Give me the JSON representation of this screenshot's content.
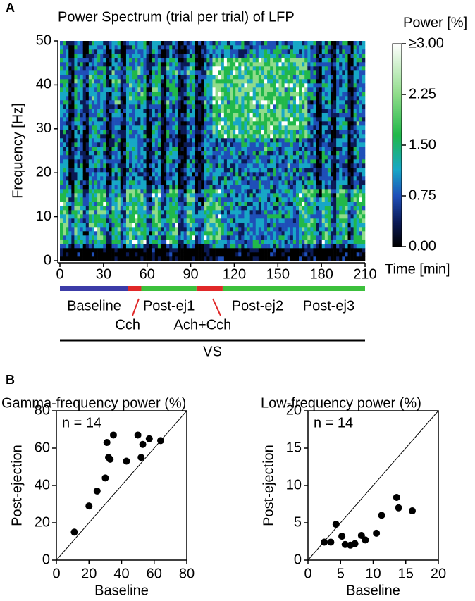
{
  "chart_data": [
    {
      "type": "spectrogram",
      "panel_label": "A",
      "title": "Power Spectrum (trial per trial) of LFP",
      "xlabel": "Time [min]",
      "ylabel": "Frequency [Hz]",
      "xlim": [
        0,
        210
      ],
      "xticks": [
        0,
        30,
        60,
        90,
        120,
        150,
        180,
        210
      ],
      "ylim": [
        0,
        50
      ],
      "yticks": [
        0,
        10,
        20,
        30,
        40,
        50
      ],
      "colorbar": {
        "label": "Power [%]",
        "lim": [
          0,
          3
        ],
        "ticks": [
          {
            "value": 0,
            "label": "0.00"
          },
          0.75,
          {
            "value": 1.5,
            "label": "1.50"
          },
          2.25,
          {
            "value": 3,
            "label": "≥3.00"
          }
        ]
      },
      "epochs": [
        {
          "label": "Baseline",
          "start": 0,
          "end": 47,
          "color": "#3c3ca8",
          "drug": false
        },
        {
          "label": "Cch",
          "start": 47,
          "end": 56,
          "color": "#e02828",
          "drug": true
        },
        {
          "label": "Post-ej1",
          "start": 56,
          "end": 94,
          "color": "#3cc03c",
          "drug": false
        },
        {
          "label": "Ach+Cch",
          "start": 94,
          "end": 112,
          "color": "#e02828",
          "drug": true
        },
        {
          "label": "Post-ej2",
          "start": 112,
          "end": 160,
          "color": "#3cc03c",
          "drug": false
        },
        {
          "label": "Post-ej3",
          "start": 160,
          "end": 210,
          "color": "#3cc03c",
          "drug": false
        }
      ],
      "span": {
        "label": "VS",
        "start": 0,
        "end": 210
      }
    },
    {
      "type": "scatter",
      "panel_label": "B",
      "title": "Gamma-frequency power (%)",
      "xlabel": "Baseline",
      "ylabel": "Post-ejection",
      "annotation": "n = 14",
      "xlim": [
        0,
        80
      ],
      "xticks": [
        0,
        20,
        40,
        60,
        80
      ],
      "ylim": [
        0,
        80
      ],
      "yticks": [
        0,
        20,
        40,
        60,
        80
      ],
      "identity_line": true,
      "color": "#000000",
      "x": [
        11,
        20,
        25,
        30,
        31,
        32,
        33,
        35,
        43,
        50,
        52,
        53,
        57,
        64
      ],
      "y": [
        15,
        29,
        37,
        44,
        63,
        55,
        54,
        67,
        53,
        67,
        55,
        62,
        65,
        64
      ]
    },
    {
      "type": "scatter",
      "title": "Low-frequency power (%)",
      "xlabel": "Baseline",
      "ylabel": "Post-ejection",
      "annotation": "n = 14",
      "xlim": [
        0,
        20
      ],
      "xticks": [
        0,
        5,
        10,
        15,
        20
      ],
      "ylim": [
        0,
        20
      ],
      "yticks": [
        0,
        5,
        10,
        15,
        20
      ],
      "identity_line": true,
      "color": "#000000",
      "x": [
        2.5,
        3.5,
        4.3,
        5.2,
        5.7,
        6.5,
        7.2,
        8.2,
        8.8,
        10.5,
        11.3,
        13.6,
        13.9,
        16.0
      ],
      "y": [
        2.4,
        2.4,
        4.8,
        3.2,
        2.1,
        2.0,
        2.2,
        3.3,
        2.7,
        3.6,
        6.0,
        8.4,
        7.0,
        6.6
      ]
    }
  ]
}
